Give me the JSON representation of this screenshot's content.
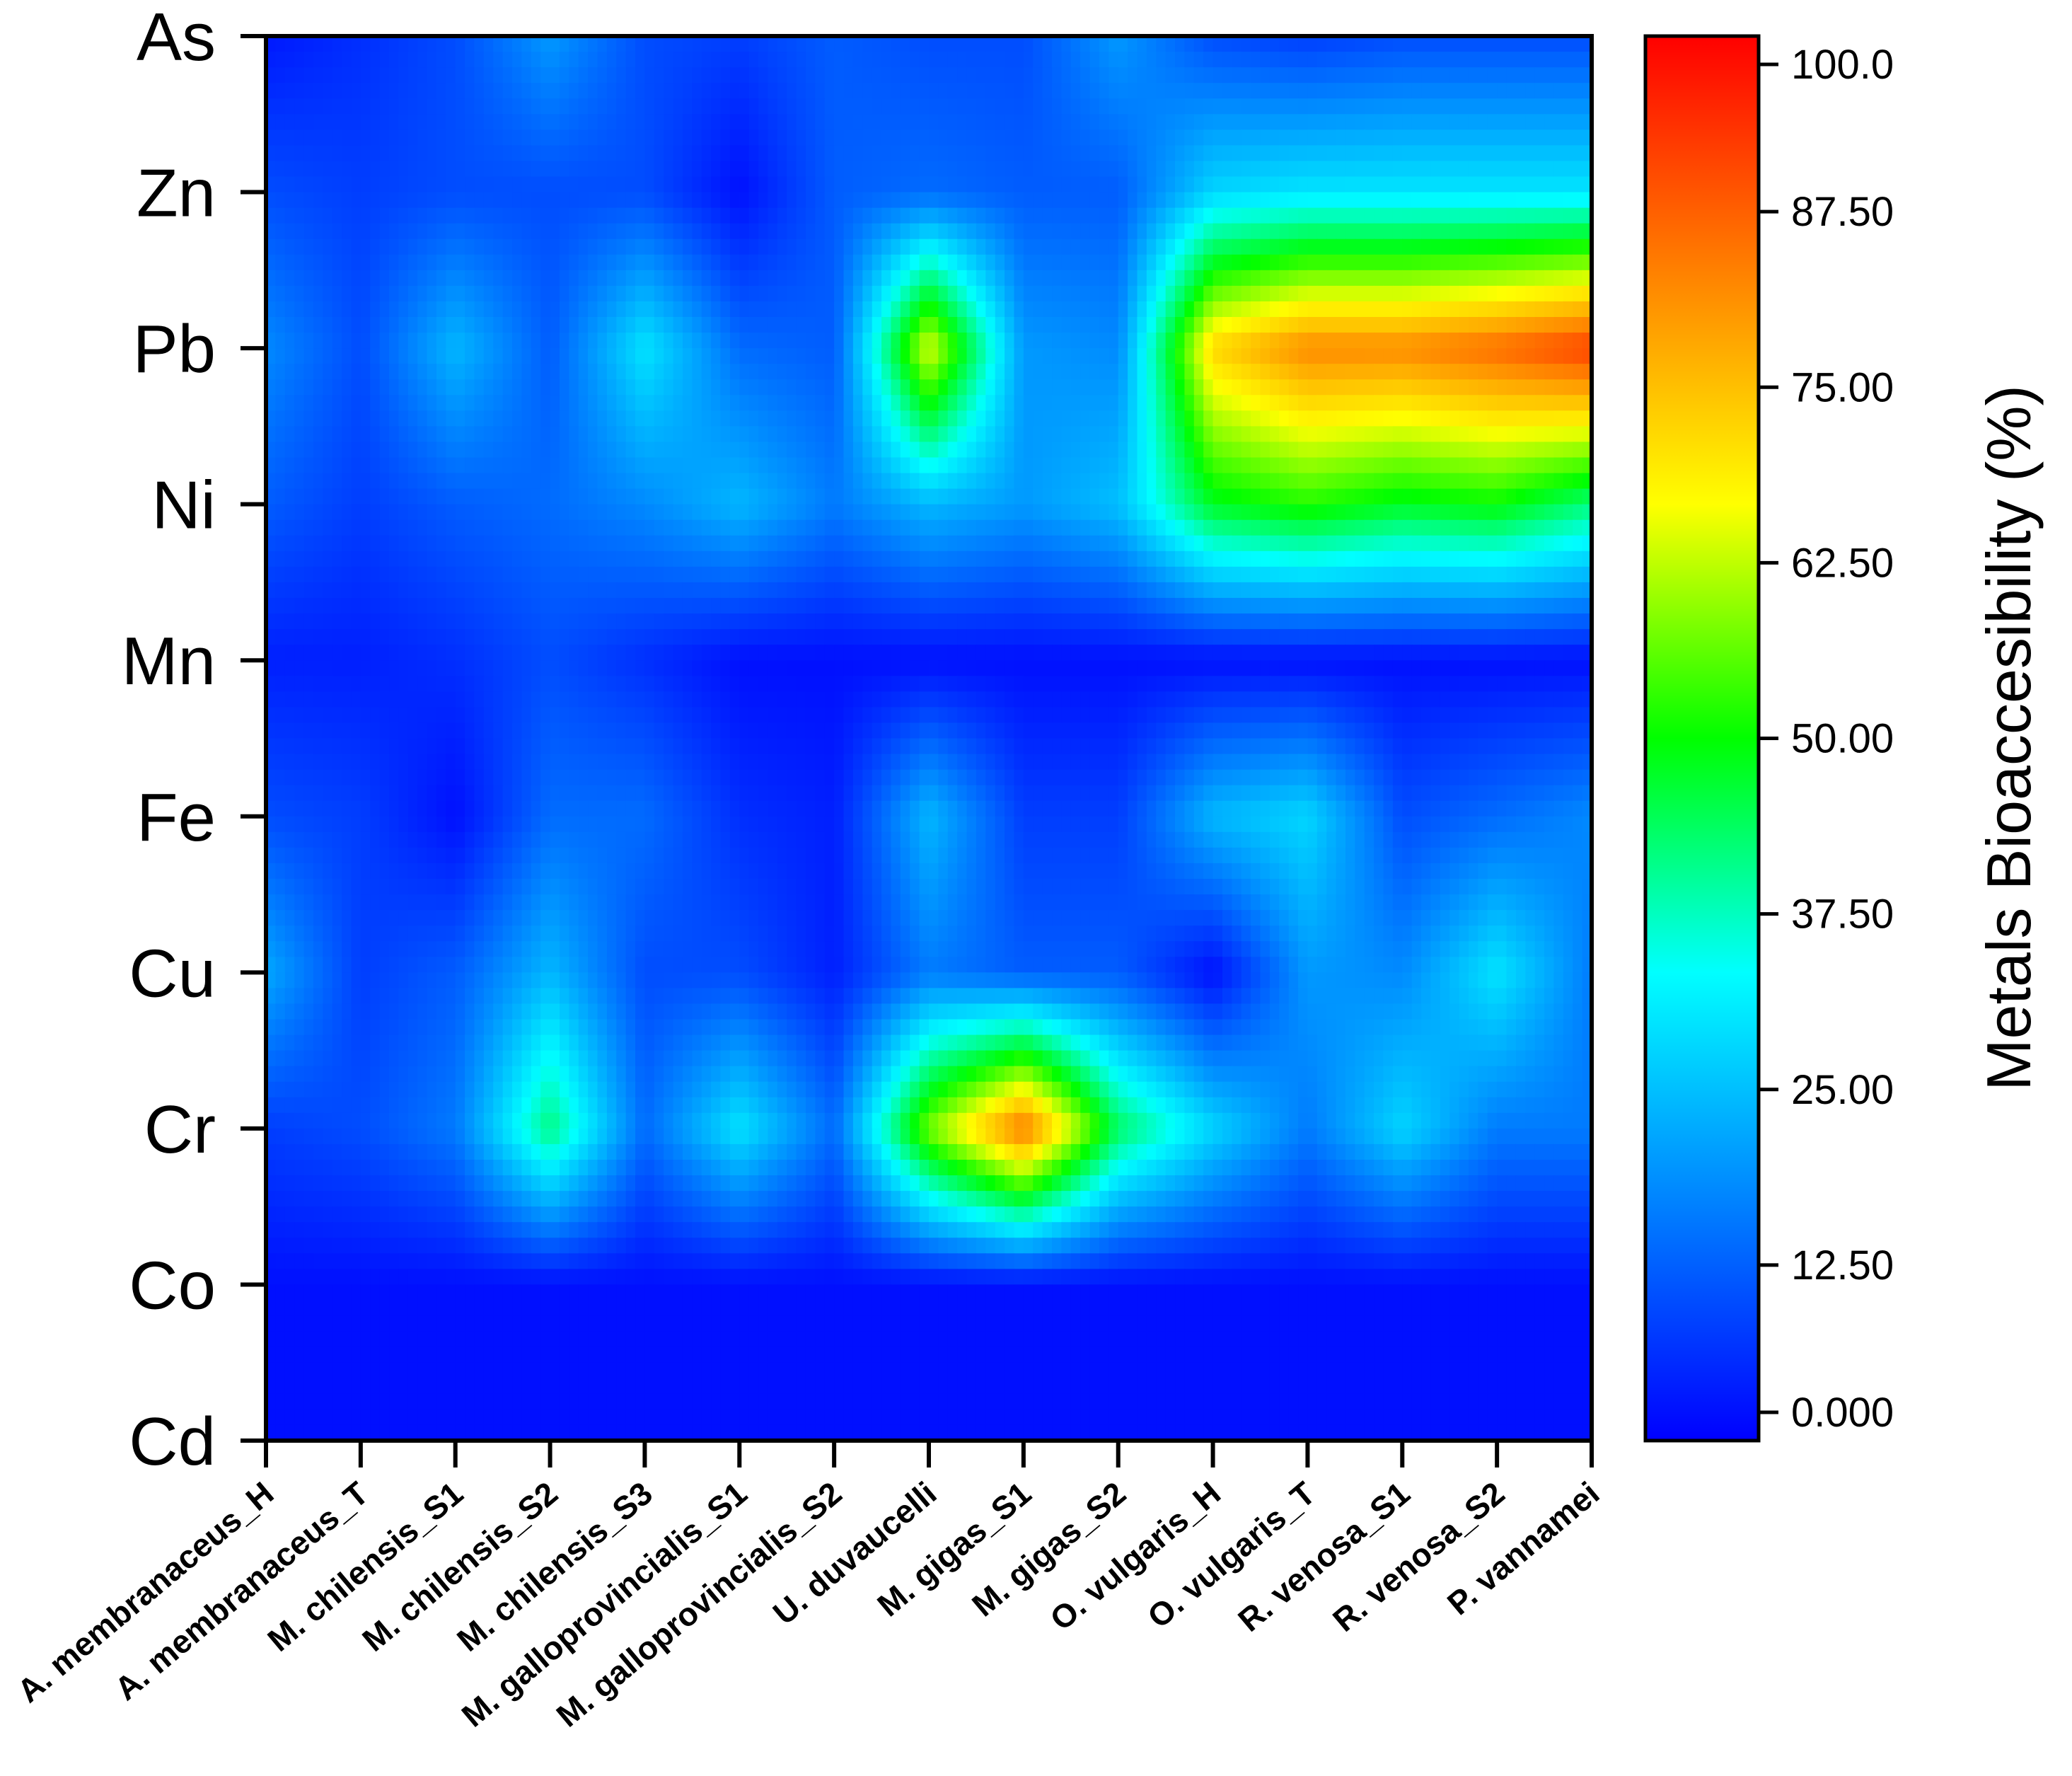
{
  "chart_data": {
    "type": "heatmap",
    "title": "",
    "xlabel": "",
    "ylabel": "",
    "x_categories": [
      "A. membranaceus_H",
      "A. membranaceus_T",
      "M. chilensis_S1",
      "M. chilensis_S2",
      "M. chilensis_S3",
      "M. galloprovincialis_S1",
      "M. galloprovincialis_S2",
      "U. duvaucelli",
      "M. gigas_S1",
      "M. gigas_S2",
      "O. vulgaris_H",
      "O. vulgaris_T",
      "R. venosa_S1",
      "R. venosa_S2",
      "P. vannamei"
    ],
    "y_categories": [
      "As",
      "Zn",
      "Pb",
      "Ni",
      "Mn",
      "Fe",
      "Cu",
      "Cr",
      "Co",
      "Cd"
    ],
    "values": [
      [
        3,
        6,
        10,
        20,
        10,
        8,
        12,
        10,
        10,
        20,
        10,
        8,
        10,
        10,
        10
      ],
      [
        10,
        8,
        10,
        10,
        10,
        2,
        12,
        14,
        12,
        12,
        28,
        30,
        30,
        30,
        30
      ],
      [
        18,
        10,
        24,
        12,
        30,
        14,
        12,
        65,
        20,
        18,
        72,
        82,
        82,
        86,
        92
      ],
      [
        12,
        8,
        12,
        14,
        18,
        24,
        16,
        24,
        20,
        25,
        48,
        52,
        48,
        50,
        42
      ],
      [
        4,
        4,
        6,
        10,
        6,
        2,
        2,
        2,
        2,
        2,
        2,
        2,
        2,
        2,
        2
      ],
      [
        10,
        8,
        2,
        14,
        14,
        6,
        4,
        24,
        8,
        8,
        24,
        28,
        10,
        14,
        18
      ],
      [
        22,
        8,
        12,
        24,
        10,
        10,
        4,
        16,
        12,
        12,
        2,
        20,
        18,
        30,
        16
      ],
      [
        8,
        10,
        16,
        42,
        14,
        30,
        14,
        58,
        85,
        44,
        28,
        16,
        28,
        16,
        16
      ],
      [
        2,
        2,
        2,
        2,
        2,
        2,
        2,
        2,
        2,
        2,
        2,
        2,
        2,
        2,
        2
      ],
      [
        2,
        2,
        2,
        2,
        2,
        2,
        2,
        2,
        2,
        2,
        2,
        2,
        2,
        2,
        2
      ]
    ],
    "value_range": [
      0,
      100
    ],
    "colorbar": {
      "title": "Metals  Bioaccesibility (%)",
      "tick_values": [
        100,
        87.5,
        75,
        62.5,
        50,
        37.5,
        25,
        12.5,
        0
      ],
      "tick_labels": [
        "100.0",
        "87.50",
        "75.00",
        "62.50",
        "50.00",
        "37.50",
        "25.00",
        "12.50",
        "0.000"
      ],
      "colormap": [
        "#0000ff",
        "#0080ff",
        "#00ffff",
        "#00ff00",
        "#ffff00",
        "#ff8000",
        "#ff0000"
      ]
    },
    "grid": false,
    "legend": "colorbar-right"
  }
}
